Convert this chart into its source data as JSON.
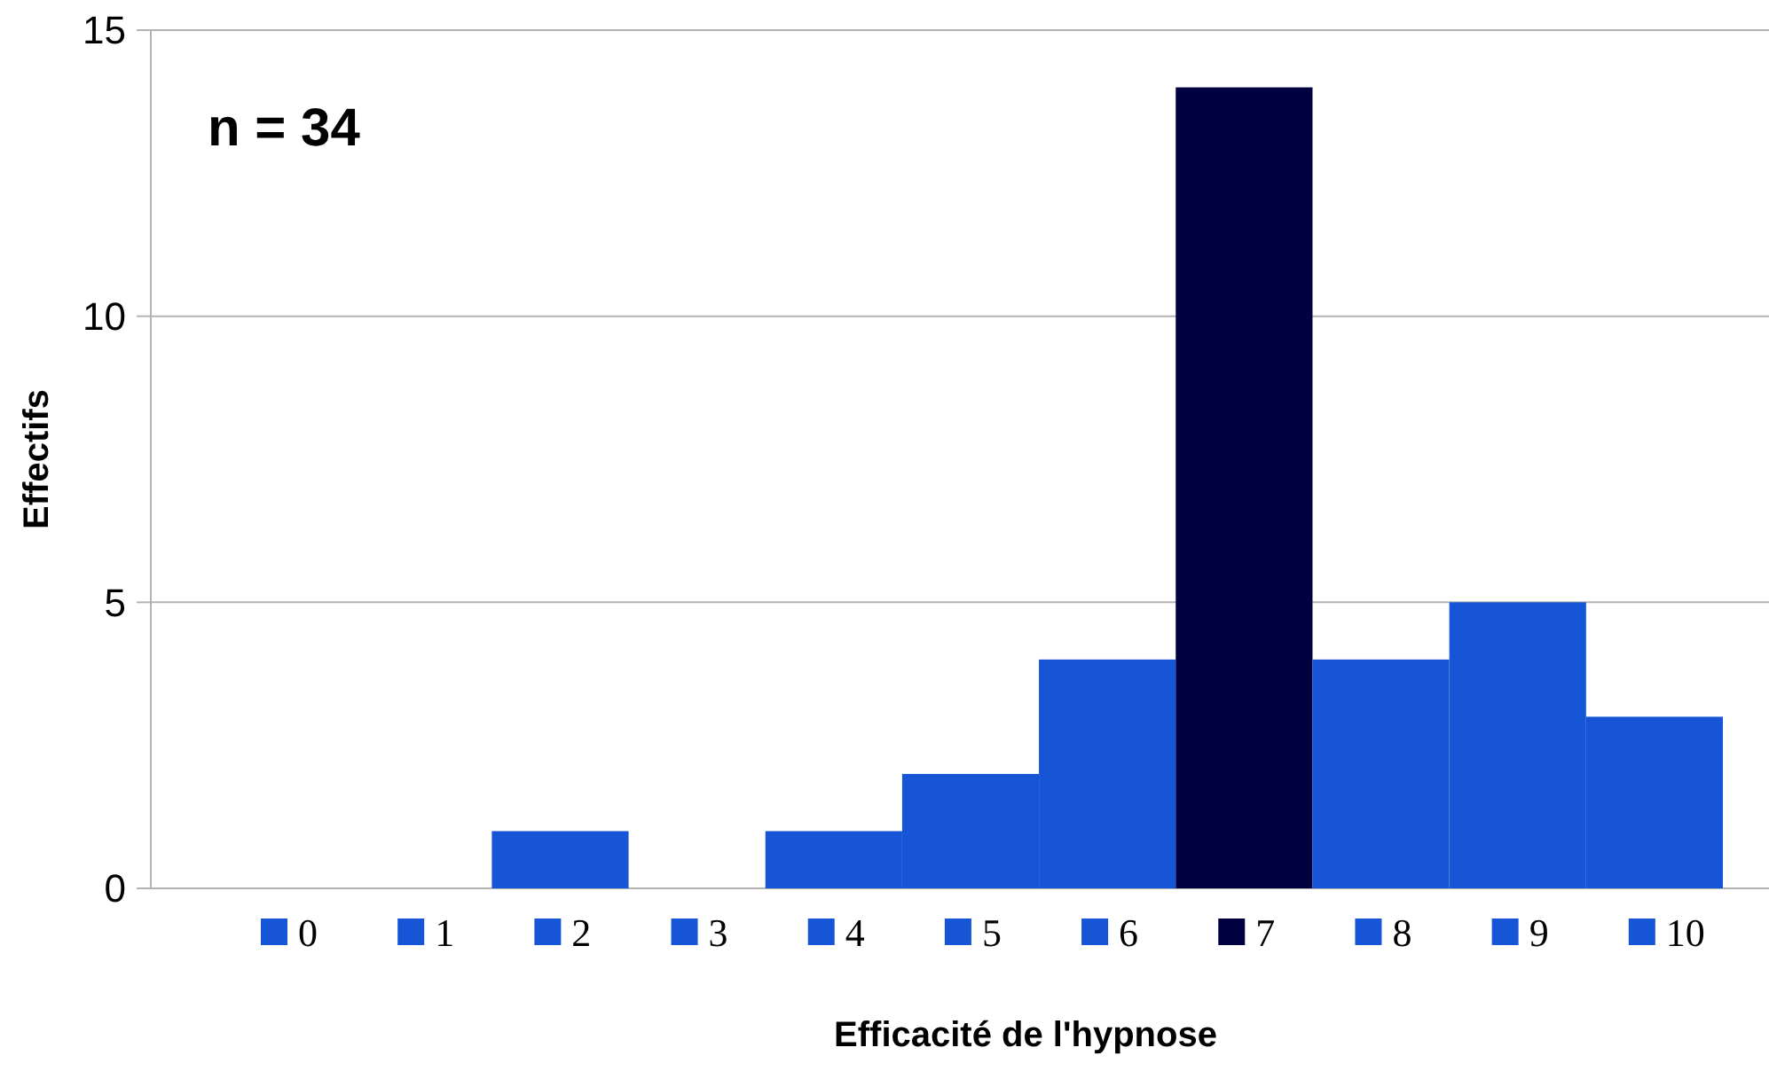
{
  "chart_data": {
    "type": "bar",
    "xlabel": "Efficacité de l'hypnose",
    "ylabel": "Effectifs",
    "categories": [
      "0",
      "1",
      "2",
      "3",
      "4",
      "5",
      "6",
      "7",
      "8",
      "9",
      "10"
    ],
    "values": [
      0,
      0,
      1,
      0,
      1,
      2,
      4,
      14,
      4,
      5,
      3
    ],
    "colors": [
      "#1655d6",
      "#1655d6",
      "#1655d6",
      "#1655d6",
      "#1655d6",
      "#1655d6",
      "#1655d6",
      "#000040",
      "#1655d6",
      "#1655d6",
      "#1655d6"
    ],
    "ylim": [
      0,
      15
    ],
    "yticks": [
      0,
      5,
      10,
      15
    ],
    "grid": "y",
    "annotations": [
      "n = 34"
    ]
  }
}
